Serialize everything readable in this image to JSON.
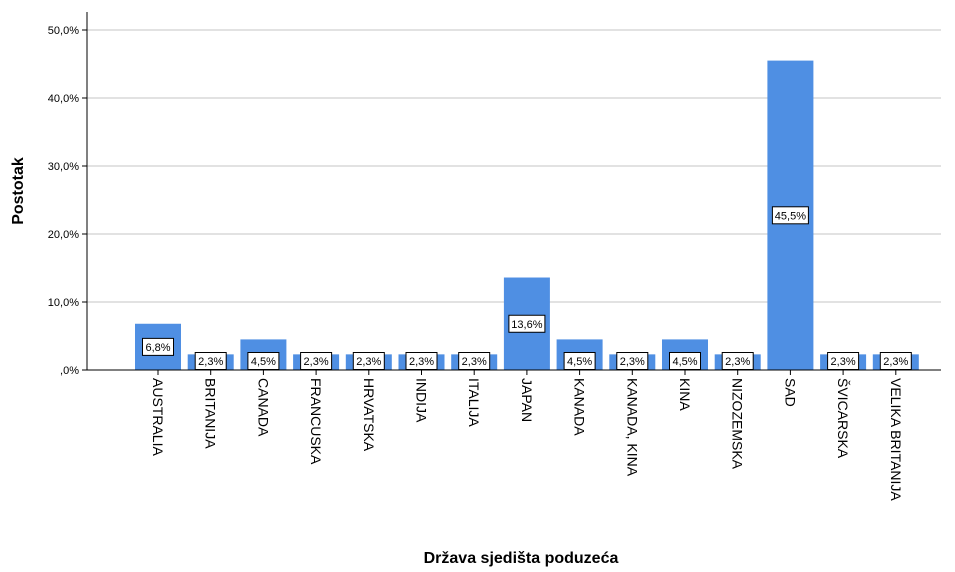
{
  "chart_data": {
    "type": "bar",
    "xlabel": "Država sjedišta poduzeća",
    "ylabel": "Postotak",
    "ylim": [
      0,
      50
    ],
    "yticks": [
      0,
      10,
      20,
      30,
      40,
      50
    ],
    "ytick_labels": [
      ",0%",
      "10,0%",
      "20,0%",
      "30,0%",
      "40,0%",
      "50,0%"
    ],
    "grid": "horizontal",
    "bar_color": "#4f8fe3",
    "categories": [
      "AUSTRALIA",
      "BRITANIJA",
      "CANADA",
      "FRANCUSKA",
      "HRVATSKA",
      "INDIJA",
      "ITALIJA",
      "JAPAN",
      "KANADA",
      "KANADA, KINA",
      "KINA",
      "NIZOZEMSKA",
      "SAD",
      "ŠVICARSKA",
      "VELIKA BRITANIJA"
    ],
    "values": [
      6.8,
      2.3,
      4.5,
      2.3,
      2.3,
      2.3,
      2.3,
      13.6,
      4.5,
      2.3,
      4.5,
      2.3,
      45.5,
      2.3,
      2.3
    ],
    "data_labels": [
      "6,8%",
      "2,3%",
      "4,5%",
      "2,3%",
      "2,3%",
      "2,3%",
      "2,3%",
      "13,6%",
      "4,5%",
      "2,3%",
      "4,5%",
      "2,3%",
      "45,5%",
      "2,3%",
      "2,3%"
    ]
  }
}
